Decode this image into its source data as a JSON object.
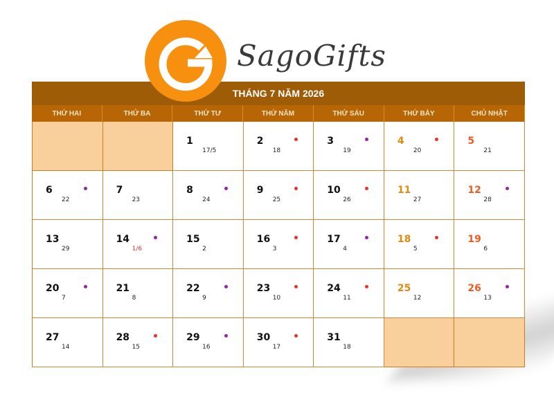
{
  "brand": {
    "name": "SagoGifts",
    "logo_color": "#f7900f"
  },
  "calendar": {
    "title": "THÁNG 7 NĂM 2026",
    "weekdays": [
      "THỨ HAI",
      "THỨ BA",
      "THỨ TƯ",
      "THỨ NĂM",
      "THỨ SÁU",
      "THỨ BẢY",
      "CHỦ NHẬT"
    ],
    "colors": {
      "header": "#9e5c06",
      "weekday_bar": "#b86505",
      "empty_cell": "#f9d09b",
      "saturday": "#e08a10",
      "sunday": "#ef5a25",
      "dot_red": "#e8322a",
      "dot_purple": "#8e2a9e"
    },
    "leading_empty": 2,
    "trailing_empty": 2,
    "days": [
      {
        "day": "1",
        "lunar": "17/5",
        "dot": ""
      },
      {
        "day": "2",
        "lunar": "18",
        "dot": "red"
      },
      {
        "day": "3",
        "lunar": "19",
        "dot": "purple"
      },
      {
        "day": "4",
        "lunar": "20",
        "dot": "red"
      },
      {
        "day": "5",
        "lunar": "21",
        "dot": ""
      },
      {
        "day": "6",
        "lunar": "22",
        "dot": "purple"
      },
      {
        "day": "7",
        "lunar": "23",
        "dot": ""
      },
      {
        "day": "8",
        "lunar": "24",
        "dot": "purple"
      },
      {
        "day": "9",
        "lunar": "25",
        "dot": "red"
      },
      {
        "day": "10",
        "lunar": "26",
        "dot": "red"
      },
      {
        "day": "11",
        "lunar": "27",
        "dot": ""
      },
      {
        "day": "12",
        "lunar": "28",
        "dot": "purple"
      },
      {
        "day": "13",
        "lunar": "29",
        "dot": ""
      },
      {
        "day": "14",
        "lunar": "1/6",
        "dot": "purple",
        "lunar_red": true
      },
      {
        "day": "15",
        "lunar": "2",
        "dot": ""
      },
      {
        "day": "16",
        "lunar": "3",
        "dot": "red"
      },
      {
        "day": "17",
        "lunar": "4",
        "dot": "purple"
      },
      {
        "day": "18",
        "lunar": "5",
        "dot": "red"
      },
      {
        "day": "19",
        "lunar": "6",
        "dot": ""
      },
      {
        "day": "20",
        "lunar": "7",
        "dot": "purple"
      },
      {
        "day": "21",
        "lunar": "8",
        "dot": ""
      },
      {
        "day": "22",
        "lunar": "9",
        "dot": "purple"
      },
      {
        "day": "23",
        "lunar": "10",
        "dot": "red"
      },
      {
        "day": "24",
        "lunar": "11",
        "dot": "red"
      },
      {
        "day": "25",
        "lunar": "12",
        "dot": ""
      },
      {
        "day": "26",
        "lunar": "13",
        "dot": "purple"
      },
      {
        "day": "27",
        "lunar": "14",
        "dot": ""
      },
      {
        "day": "28",
        "lunar": "15",
        "dot": "red"
      },
      {
        "day": "29",
        "lunar": "16",
        "dot": "purple"
      },
      {
        "day": "30",
        "lunar": "17",
        "dot": "red"
      },
      {
        "day": "31",
        "lunar": "18",
        "dot": ""
      }
    ]
  }
}
